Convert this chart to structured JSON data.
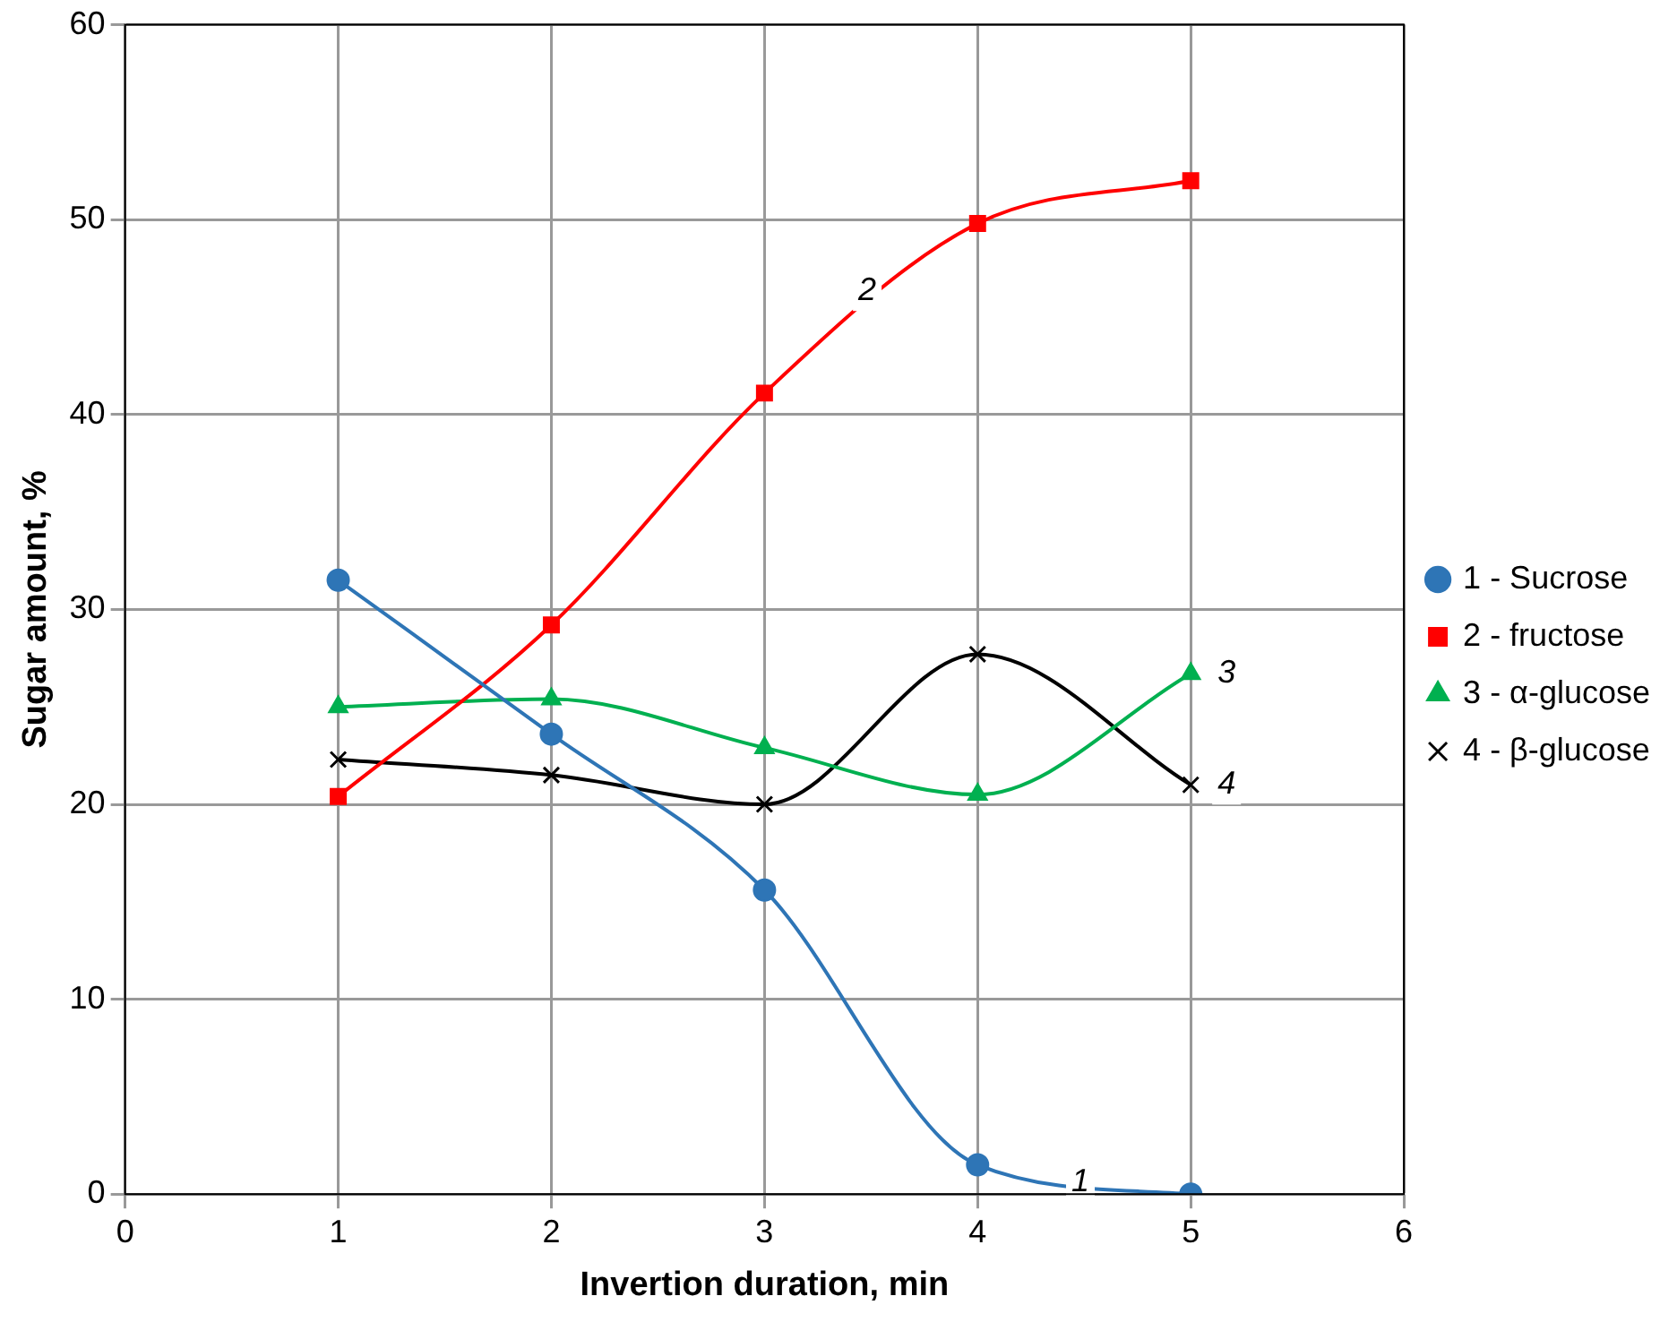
{
  "chart_data": {
    "type": "line",
    "xlabel": "Invertion duration, min",
    "ylabel": "Sugar amount, %",
    "x": [
      1,
      2,
      3,
      4,
      5
    ],
    "series": [
      {
        "name": "1 - Sucrose",
        "color": "#2e75b6",
        "marker": "circle",
        "values": [
          31.5,
          23.6,
          15.6,
          1.5,
          0
        ]
      },
      {
        "name": "2 - fructose",
        "color": "#ff0000",
        "marker": "square",
        "values": [
          20.4,
          29.2,
          41.1,
          49.8,
          52.0
        ]
      },
      {
        "name": "3 - α-glucose",
        "color": "#00b050",
        "marker": "triangle",
        "values": [
          25.0,
          25.4,
          22.9,
          20.5,
          26.7
        ]
      },
      {
        "name": "4 - β-glucose",
        "color": "#000000",
        "marker": "cross",
        "values": [
          22.3,
          21.5,
          20.0,
          27.7,
          21.0
        ]
      }
    ],
    "xlim": [
      0,
      6
    ],
    "xticks": [
      0,
      1,
      2,
      3,
      4,
      5,
      6
    ],
    "ylim": [
      0,
      60
    ],
    "yticks": [
      0,
      10,
      20,
      30,
      40,
      50,
      60
    ],
    "grid": true,
    "legend": "right",
    "annotations": [
      "1",
      "2",
      "3",
      "4"
    ]
  }
}
